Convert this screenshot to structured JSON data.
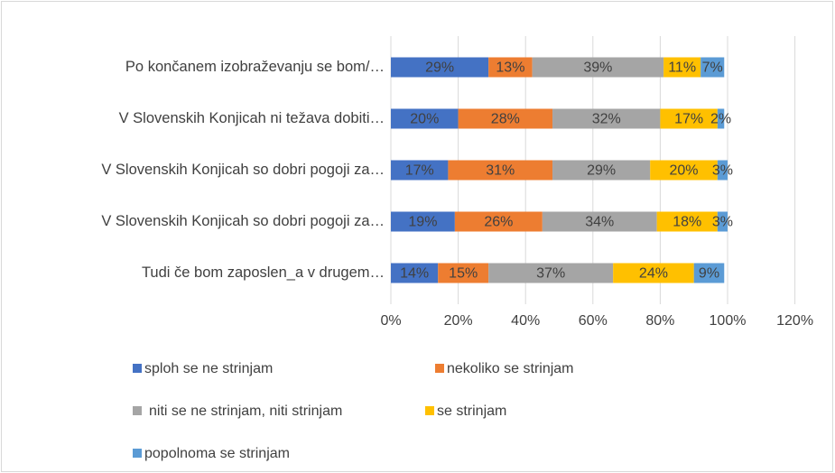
{
  "chart_data": {
    "type": "bar",
    "orientation": "horizontal",
    "stacked": true,
    "categories": [
      "Po končanem izobraževanju se bom/…",
      "V Slovenskih Konjicah ni težava dobiti…",
      "V Slovenskih Konjicah so dobri pogoji za…",
      "V Slovenskih Konjicah so dobri pogoji za…",
      "Tudi če bom zaposlen_a v drugem…"
    ],
    "series": [
      {
        "name": "sploh se ne strinjam",
        "color": "#4472c4",
        "values": [
          29,
          20,
          17,
          19,
          14
        ],
        "value_labels": [
          "29%",
          "20%",
          "17%",
          "19%",
          "14%"
        ]
      },
      {
        "name": "nekoliko se strinjam",
        "color": "#ed7d31",
        "values": [
          13,
          28,
          31,
          26,
          15
        ],
        "value_labels": [
          "13%",
          "28%",
          "31%",
          "26%",
          "15%"
        ]
      },
      {
        "name": "niti se ne strinjam, niti strinjam",
        "color": "#a5a5a5",
        "values": [
          39,
          32,
          29,
          34,
          37
        ],
        "value_labels": [
          "39%",
          "32%",
          "29%",
          "34%",
          "37%"
        ]
      },
      {
        "name": "se strinjam",
        "color": "#ffc000",
        "values": [
          11,
          17,
          20,
          18,
          24
        ],
        "value_labels": [
          "11%",
          "17%",
          "20%",
          "18%",
          "24%"
        ]
      },
      {
        "name": "popolnoma se strinjam",
        "color": "#5b9bd5",
        "values": [
          7,
          2,
          3,
          3,
          9
        ],
        "value_labels": [
          "7%",
          "2%",
          "3%",
          "3%",
          "9%"
        ]
      }
    ],
    "xlim": [
      0,
      120
    ],
    "xticks": [
      {
        "value": 0,
        "label": "0%"
      },
      {
        "value": 20,
        "label": "20%"
      },
      {
        "value": 40,
        "label": "40%"
      },
      {
        "value": 60,
        "label": "60%"
      },
      {
        "value": 80,
        "label": "80%"
      },
      {
        "value": 100,
        "label": "100%"
      },
      {
        "value": 120,
        "label": "120%"
      }
    ],
    "grid": true,
    "legend": "bottom"
  }
}
